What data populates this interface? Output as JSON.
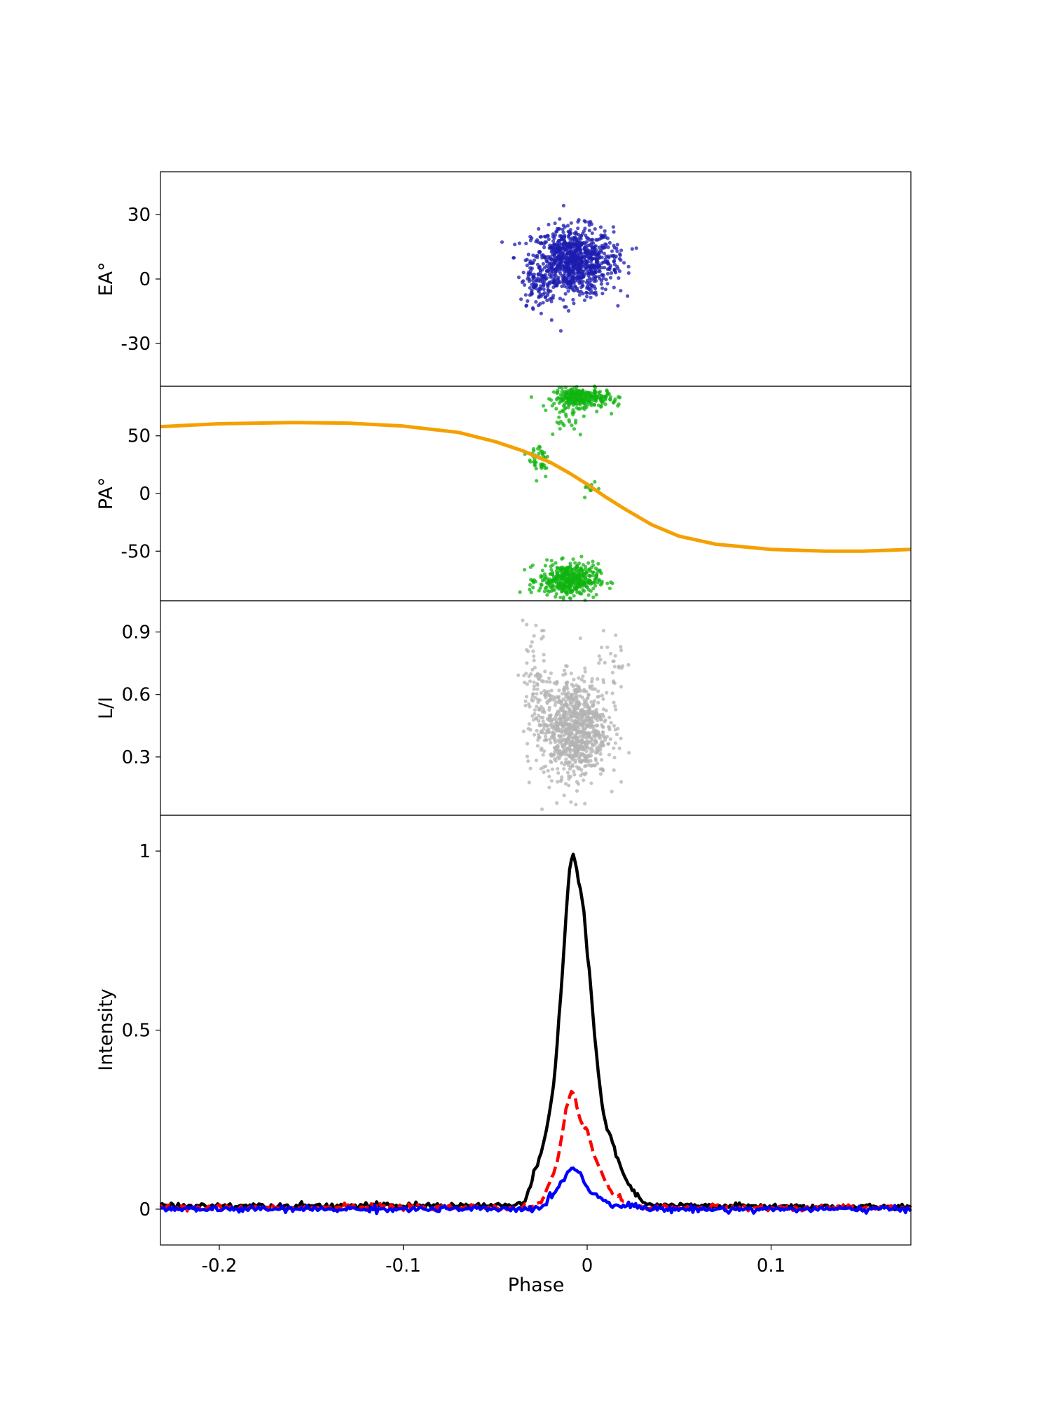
{
  "chart_data": [
    {
      "type": "scatter",
      "panel": "ea",
      "ylabel": "EA°",
      "xlim": [
        -0.232,
        0.176
      ],
      "ylim": [
        -50,
        50
      ],
      "yticks": [
        30,
        0,
        -30
      ],
      "ytick_labels": [
        "30",
        "0",
        "-30"
      ],
      "show_xticklabels": false,
      "color": "#1c1cb0",
      "clusters": [
        {
          "x_center": -0.008,
          "x_spread": 0.011,
          "y_center": 8,
          "y_spread": 8,
          "count": 900
        },
        {
          "x_center": -0.027,
          "x_spread": 0.004,
          "y_center": -3,
          "y_spread": 5,
          "count": 70
        },
        {
          "x_center": 0.014,
          "x_spread": 0.004,
          "y_center": 8,
          "y_spread": 5,
          "count": 25
        }
      ]
    },
    {
      "type": "scatter",
      "panel": "pa",
      "ylabel": "PA°",
      "xlim": [
        -0.232,
        0.176
      ],
      "ylim": [
        -93,
        93
      ],
      "yticks": [
        50,
        0,
        -50
      ],
      "ytick_labels": [
        "50",
        "0",
        "-50"
      ],
      "show_xticklabels": false,
      "color": "#10b410",
      "clusters": [
        {
          "x_center": -0.004,
          "x_spread": 0.007,
          "y_center": 83,
          "y_spread": 4,
          "count": 260
        },
        {
          "x_center": -0.01,
          "x_spread": 0.008,
          "y_center": -75,
          "y_spread": 7,
          "count": 420
        },
        {
          "x_center": -0.026,
          "x_spread": 0.003,
          "y_center": 30,
          "y_spread": 8,
          "count": 45
        },
        {
          "x_center": -0.012,
          "x_spread": 0.006,
          "y_center": 65,
          "y_spread": 8,
          "count": 25
        },
        {
          "x_center": 0.012,
          "x_spread": 0.004,
          "y_center": 82,
          "y_spread": 5,
          "count": 25
        },
        {
          "x_center": 0.002,
          "x_spread": 0.002,
          "y_center": 5,
          "y_spread": 4,
          "count": 10
        }
      ],
      "fit_curve": {
        "color": "#f5a000",
        "x": [
          -0.232,
          -0.2,
          -0.16,
          -0.13,
          -0.1,
          -0.07,
          -0.05,
          -0.035,
          -0.02,
          -0.01,
          0.0,
          0.01,
          0.02,
          0.035,
          0.05,
          0.07,
          0.1,
          0.13,
          0.15,
          0.176
        ],
        "y": [
          58,
          60.5,
          61.5,
          61,
          58.5,
          53,
          45,
          37,
          27,
          18,
          8,
          -3,
          -13,
          -27,
          -37,
          -44,
          -48.5,
          -50,
          -50,
          -48.5
        ]
      }
    },
    {
      "type": "scatter",
      "panel": "li",
      "ylabel": "L/I",
      "xlim": [
        -0.232,
        0.176
      ],
      "ylim": [
        0.02,
        1.05
      ],
      "yticks": [
        0.9,
        0.6,
        0.3
      ],
      "ytick_labels": [
        "0.9",
        "0.6",
        "0.3"
      ],
      "show_xticklabels": false,
      "color": "#b3b3b3",
      "clusters": [
        {
          "x_center": -0.007,
          "x_spread": 0.009,
          "y_center": 0.44,
          "y_spread": 0.12,
          "count": 850
        },
        {
          "x_center": -0.027,
          "x_spread": 0.004,
          "y_center": 0.58,
          "y_spread": 0.17,
          "count": 100
        },
        {
          "x_center": 0.013,
          "x_spread": 0.004,
          "y_center": 0.72,
          "y_spread": 0.1,
          "count": 30
        }
      ]
    },
    {
      "type": "line",
      "panel": "profile",
      "ylabel": "Intensity",
      "xlabel": "Phase",
      "xlim": [
        -0.232,
        0.176
      ],
      "ylim": [
        -0.1,
        1.1
      ],
      "yticks": [
        1,
        0.5,
        0
      ],
      "ytick_labels": [
        "1",
        "0.5",
        "0"
      ],
      "xticks": [
        -0.2,
        -0.1,
        0,
        0.1
      ],
      "xtick_labels": [
        "-0.2",
        "-0.1",
        "0",
        "0.1"
      ],
      "show_xticklabels": true,
      "series": [
        {
          "color": "#000000",
          "dash": "solid",
          "x": [
            -0.232,
            -0.04,
            -0.034,
            -0.03,
            -0.026,
            -0.022,
            -0.018,
            -0.015,
            -0.012,
            -0.01,
            -0.008,
            -0.006,
            -0.004,
            -0.002,
            0.0,
            0.002,
            0.004,
            0.006,
            0.008,
            0.01,
            0.013,
            0.016,
            0.02,
            0.025,
            0.03,
            0.035,
            0.04,
            0.176
          ],
          "y": [
            0.01,
            0.01,
            0.02,
            0.08,
            0.14,
            0.22,
            0.35,
            0.55,
            0.78,
            0.93,
            1.0,
            0.96,
            0.9,
            0.84,
            0.72,
            0.62,
            0.49,
            0.38,
            0.3,
            0.23,
            0.2,
            0.15,
            0.09,
            0.05,
            0.02,
            0.01,
            0.01,
            0.005
          ]
        },
        {
          "color": "#ff0000",
          "dash": "dashed",
          "x": [
            -0.232,
            -0.035,
            -0.028,
            -0.024,
            -0.02,
            -0.016,
            -0.012,
            -0.01,
            -0.008,
            -0.006,
            -0.004,
            -0.002,
            0.0,
            0.004,
            0.008,
            0.012,
            0.016,
            0.02,
            0.025,
            0.03,
            0.176
          ],
          "y": [
            0.005,
            0.005,
            0.01,
            0.03,
            0.07,
            0.14,
            0.26,
            0.31,
            0.33,
            0.3,
            0.25,
            0.23,
            0.22,
            0.15,
            0.1,
            0.06,
            0.04,
            0.02,
            0.01,
            0.005,
            0.005
          ]
        },
        {
          "color": "#0000ff",
          "dash": "solid",
          "x": [
            -0.232,
            -0.03,
            -0.024,
            -0.02,
            -0.016,
            -0.012,
            -0.01,
            -0.008,
            -0.006,
            -0.004,
            -0.002,
            0.0,
            0.004,
            0.008,
            0.012,
            0.016,
            0.025,
            0.035,
            0.176
          ],
          "y": [
            0.0,
            0.0,
            0.01,
            0.03,
            0.06,
            0.09,
            0.11,
            0.12,
            0.11,
            0.1,
            0.08,
            0.06,
            0.04,
            0.03,
            0.02,
            0.01,
            0.01,
            0.0,
            0.0
          ]
        }
      ]
    }
  ]
}
